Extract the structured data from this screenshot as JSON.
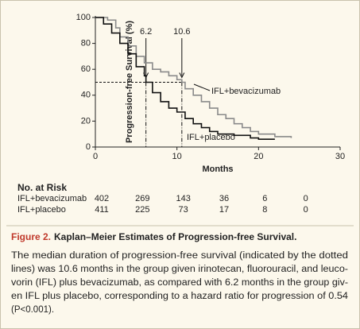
{
  "chart_data": {
    "type": "line",
    "step": true,
    "xlabel": "Months",
    "ylabel": "Progression-free Survival (%)",
    "xlim": [
      0,
      30
    ],
    "xticks": [
      0,
      10,
      20,
      30
    ],
    "ylim": [
      0,
      100
    ],
    "yticks": [
      0,
      20,
      40,
      60,
      80,
      100
    ],
    "medians": [
      6.2,
      10.6
    ],
    "median_level": 50,
    "series": [
      {
        "name": "IFL+bevacizumab",
        "color": "#8a8a8a",
        "x": [
          0,
          1.5,
          2.5,
          3,
          4,
          5,
          6,
          7,
          8,
          9,
          10,
          10.6,
          11,
          12,
          13,
          14,
          15,
          16,
          17,
          18,
          19,
          20,
          22,
          24
        ],
        "values": [
          100,
          98,
          92,
          85,
          78,
          70,
          65,
          60,
          58,
          55,
          52,
          50,
          45,
          40,
          35,
          30,
          25,
          22,
          18,
          15,
          12,
          10,
          8,
          7
        ]
      },
      {
        "name": "IFL+placebo",
        "color": "#111111",
        "x": [
          0,
          1,
          2,
          3,
          4,
          5,
          6,
          6.2,
          7,
          8,
          9,
          10,
          11,
          12,
          13,
          14,
          15,
          17,
          19,
          20,
          22
        ],
        "values": [
          100,
          95,
          88,
          80,
          72,
          62,
          55,
          50,
          42,
          35,
          30,
          27,
          22,
          18,
          15,
          12,
          10,
          9,
          7,
          6,
          6
        ]
      }
    ]
  },
  "risk_table": {
    "title": "No. at Risk",
    "rows": [
      {
        "name": "IFL+bevacizumab",
        "values": [
          "402",
          "269",
          "143",
          "36",
          "6",
          "0"
        ]
      },
      {
        "name": "IFL+placebo",
        "values": [
          "411",
          "225",
          "73",
          "17",
          "8",
          "0"
        ]
      }
    ]
  },
  "caption": {
    "label": "Figure 2.",
    "title": "Kaplan–Meier Estimates of Progression-free Survival.",
    "lines": [
      "The median duration of progression-free survival (indicated by the dotted",
      "lines) was 10.6 months in the group given irinotecan, fluorouracil, and leuco-",
      "vorin (IFL) plus bevacizumab, as compared with 6.2 months in the group giv-",
      "en IFL plus placebo, corresponding to a hazard ratio for progression of 0.54",
      "(P<0.001)."
    ]
  }
}
